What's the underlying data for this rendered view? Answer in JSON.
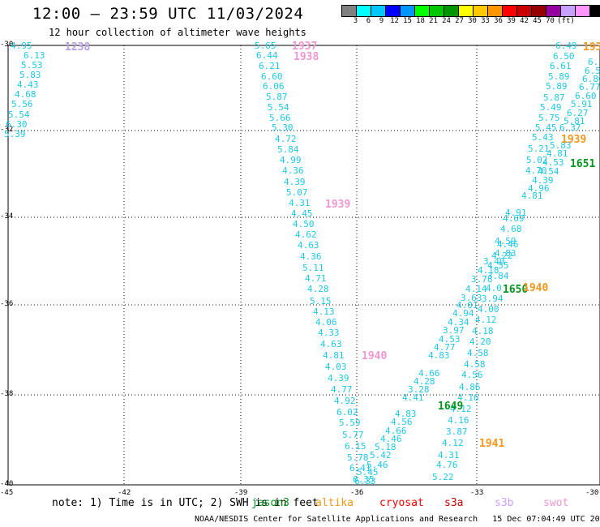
{
  "header": {
    "title": "12:00 — 23:59 UTC 11/03/2024",
    "subtitle": "12 hour collection of altimeter wave heights"
  },
  "colorbar": {
    "colors": [
      "#808080",
      "#00ffff",
      "#00c8ff",
      "#0000ff",
      "#0096ff",
      "#00ff00",
      "#00c800",
      "#009600",
      "#ffff00",
      "#ffc800",
      "#ff9600",
      "#ff0000",
      "#c80000",
      "#960000",
      "#9600a0",
      "#c8a0ff",
      "#ff96ff",
      "#000000"
    ],
    "labels": [
      "3",
      "6",
      "9",
      "12",
      "15",
      "18",
      "21",
      "24",
      "27",
      "30",
      "33",
      "36",
      "39",
      "42",
      "45",
      "70",
      "(ft)"
    ]
  },
  "axes": {
    "y_ticks": [
      "-30",
      "-32",
      "-34",
      "-36",
      "-38",
      "-40"
    ],
    "x_ticks": [
      "-45",
      "-42",
      "-39",
      "-36",
      "-33",
      "-30"
    ]
  },
  "tracks": [
    {
      "name": "track-left-top",
      "color": "#1ec8e6",
      "points": [
        [
          "4.95",
          25,
          57
        ],
        [
          "6.13",
          41,
          69
        ],
        [
          "5.53",
          38,
          81
        ],
        [
          "5.83",
          36,
          93
        ],
        [
          "4.43",
          33,
          105
        ],
        [
          "4.68",
          30,
          117
        ],
        [
          "5.56",
          26,
          129
        ],
        [
          "5.54",
          22,
          142
        ],
        [
          "6.30",
          19,
          154
        ],
        [
          "5.39",
          17,
          166
        ]
      ]
    },
    {
      "name": "track-center",
      "color": "#1ec8e6",
      "points": [
        [
          "5.65",
          326,
          57
        ],
        [
          "6.44",
          328,
          69
        ],
        [
          "6.21",
          331,
          82
        ],
        [
          "6.60",
          334,
          95
        ],
        [
          "6.06",
          336,
          107
        ],
        [
          "5.87",
          340,
          120
        ],
        [
          "5.54",
          342,
          133
        ],
        [
          "5.66",
          344,
          146
        ],
        [
          "5.30",
          347,
          158
        ],
        [
          "4.72",
          351,
          172
        ],
        [
          "5.84",
          354,
          185
        ],
        [
          "4.99",
          357,
          198
        ],
        [
          "4.36",
          360,
          211
        ],
        [
          "4.39",
          362,
          225
        ],
        [
          "5.07",
          365,
          238
        ],
        [
          "4.31",
          368,
          251
        ],
        [
          "4.45",
          371,
          264
        ],
        [
          "4.50",
          373,
          277
        ],
        [
          "4.62",
          376,
          290
        ],
        [
          "4.63",
          379,
          303
        ],
        [
          "4.36",
          382,
          317
        ],
        [
          "5.11",
          385,
          331
        ],
        [
          "4.71",
          388,
          344
        ],
        [
          "4.28",
          391,
          357
        ],
        [
          "5.15",
          394,
          372
        ],
        [
          "4.13",
          398,
          385
        ],
        [
          "4.06",
          401,
          398
        ],
        [
          "4.33",
          404,
          411
        ],
        [
          "4.63",
          407,
          425
        ],
        [
          "4.81",
          410,
          439
        ],
        [
          "4.03",
          413,
          453
        ],
        [
          "4.39",
          416,
          467
        ],
        [
          "4.77",
          420,
          481
        ],
        [
          "4.92",
          424,
          495
        ],
        [
          "6.02",
          427,
          509
        ],
        [
          "5.59",
          430,
          522
        ],
        [
          "5.77",
          434,
          537
        ],
        [
          "6.15",
          437,
          551
        ],
        [
          "5.78",
          440,
          565
        ],
        [
          "6.41",
          443,
          578
        ],
        [
          "6.33",
          449,
          594
        ]
      ]
    },
    {
      "name": "track-lower-diag",
      "color": "#1ec8e6",
      "points": [
        [
          "6.35",
          447,
          592
        ],
        [
          "5.45",
          452,
          583
        ],
        [
          "5.46",
          464,
          574
        ],
        [
          "5.42",
          468,
          562
        ],
        [
          "5.18",
          474,
          552
        ],
        [
          "4.46",
          481,
          542
        ],
        [
          "4.66",
          487,
          532
        ],
        [
          "4.56",
          494,
          521
        ],
        [
          "4.83",
          499,
          511
        ],
        [
          "4.41",
          508,
          491
        ],
        [
          "3.28",
          515,
          481
        ],
        [
          "4.28",
          522,
          471
        ],
        [
          "4.66",
          528,
          461
        ],
        [
          "4.83",
          540,
          439
        ],
        [
          "4.77",
          547,
          429
        ],
        [
          "4.53",
          553,
          419
        ],
        [
          "3.97",
          558,
          408
        ],
        [
          "4.34",
          564,
          398
        ],
        [
          "4.94",
          570,
          387
        ],
        [
          "4.01",
          575,
          377
        ],
        [
          "3.63",
          580,
          368
        ],
        [
          "4.14",
          586,
          357
        ]
      ]
    },
    {
      "name": "track-lower-right",
      "color": "#1ec8e6",
      "points": [
        [
          "5.22",
          545,
          589
        ],
        [
          "4.76",
          550,
          574
        ],
        [
          "4.31",
          552,
          562
        ],
        [
          "4.12",
          557,
          547
        ],
        [
          "3.87",
          562,
          533
        ],
        [
          "4.16",
          564,
          519
        ],
        [
          "4.12",
          567,
          505
        ],
        [
          "4.16",
          576,
          491
        ],
        [
          "4.86",
          578,
          478
        ],
        [
          "4.56",
          581,
          463
        ],
        [
          "4.58",
          584,
          450
        ],
        [
          "4.58",
          588,
          436
        ],
        [
          "4.20",
          591,
          422
        ],
        [
          "4.18",
          594,
          409
        ],
        [
          "4.12",
          598,
          395
        ],
        [
          "4.00",
          601,
          382
        ],
        [
          "3.94",
          606,
          369
        ],
        [
          "4.0",
          611,
          356
        ],
        [
          "3.84",
          613,
          341
        ],
        [
          "3.78",
          593,
          345
        ],
        [
          "4.55",
          613,
          328
        ],
        [
          "4.18",
          601,
          334
        ],
        [
          "3.40",
          608,
          323
        ],
        [
          "4.22",
          618,
          316
        ],
        [
          "4.83",
          622,
          313
        ],
        [
          "4.46",
          625,
          302
        ],
        [
          "4.59",
          622,
          298
        ],
        [
          "4.68",
          629,
          283
        ],
        [
          "4.69",
          632,
          270
        ],
        [
          "4.91",
          635,
          263
        ],
        [
          "4.81",
          655,
          242
        ],
        [
          "4.96",
          663,
          233
        ],
        [
          "4.39",
          668,
          223
        ],
        [
          "4.54",
          675,
          212
        ],
        [
          "4.70",
          660,
          211
        ],
        [
          "5.02",
          661,
          198
        ],
        [
          "4.53",
          681,
          201
        ],
        [
          "4.81",
          686,
          190
        ],
        [
          "5.21",
          663,
          184
        ],
        [
          "5.83",
          690,
          180
        ],
        [
          "5.43",
          668,
          170
        ],
        [
          "6.37",
          702,
          158
        ],
        [
          "5.45",
          672,
          158
        ],
        [
          "5.81",
          707,
          150
        ],
        [
          "5.75",
          676,
          146
        ],
        [
          "6.27",
          711,
          140
        ],
        [
          "5.49",
          678,
          133
        ],
        [
          "5.91",
          716,
          129
        ],
        [
          "5.87",
          682,
          121
        ],
        [
          "6.60",
          721,
          119
        ],
        [
          "5.89",
          685,
          107
        ],
        [
          "6.77",
          726,
          108
        ],
        [
          "5.89",
          688,
          95
        ],
        [
          "6.80",
          730,
          98
        ],
        [
          "6.61",
          690,
          82
        ],
        [
          "6.5",
          733,
          88
        ],
        [
          "6.50",
          694,
          70
        ],
        [
          "6.",
          737,
          77
        ],
        [
          "6.49",
          697,
          57
        ]
      ]
    }
  ],
  "time_labels": [
    {
      "text": "1238",
      "color": "#b4a0e6",
      "x": 80,
      "y": 51
    },
    {
      "text": "1937",
      "color": "#f096d2",
      "x": 360,
      "y": 50
    },
    {
      "text": "1938",
      "color": "#f096d2",
      "x": 362,
      "y": 63
    },
    {
      "text": "1939",
      "color": "#f096d2",
      "x": 401,
      "y": 245
    },
    {
      "text": "1940",
      "color": "#f096d2",
      "x": 446,
      "y": 432
    },
    {
      "text": "193",
      "color": "#f5961e",
      "x": 719,
      "y": 51
    },
    {
      "text": "1939",
      "color": "#f5961e",
      "x": 692,
      "y": 165
    },
    {
      "text": "1651",
      "color": "#00961e",
      "x": 703,
      "y": 195
    },
    {
      "text": "1650",
      "color": "#00961e",
      "x": 620,
      "y": 350
    },
    {
      "text": "1940",
      "color": "#f5961e",
      "x": 645,
      "y": 348
    },
    {
      "text": "1649",
      "color": "#00961e",
      "x": 540,
      "y": 494
    },
    {
      "text": "1941",
      "color": "#f5961e",
      "x": 591,
      "y": 540
    }
  ],
  "legend": {
    "note": "note: 1) Time is in UTC; 2) SWH is in feet",
    "items": [
      {
        "label": "jason3",
        "color": "#00961e",
        "x": 310
      },
      {
        "label": "altika",
        "color": "#f5961e",
        "x": 389
      },
      {
        "label": "cryosat",
        "color": "#ff0000",
        "x": 468
      },
      {
        "label": "s3a",
        "color": "#c80000",
        "x": 548
      },
      {
        "label": "s3b",
        "color": "#c8a0ff",
        "x": 610
      },
      {
        "label": "swot",
        "color": "#f096d2",
        "x": 670
      }
    ]
  },
  "footer": "NOAA/NESDIS Center for Satellite Applications and Research   15 Dec 07:04:49 UTC 2024"
}
